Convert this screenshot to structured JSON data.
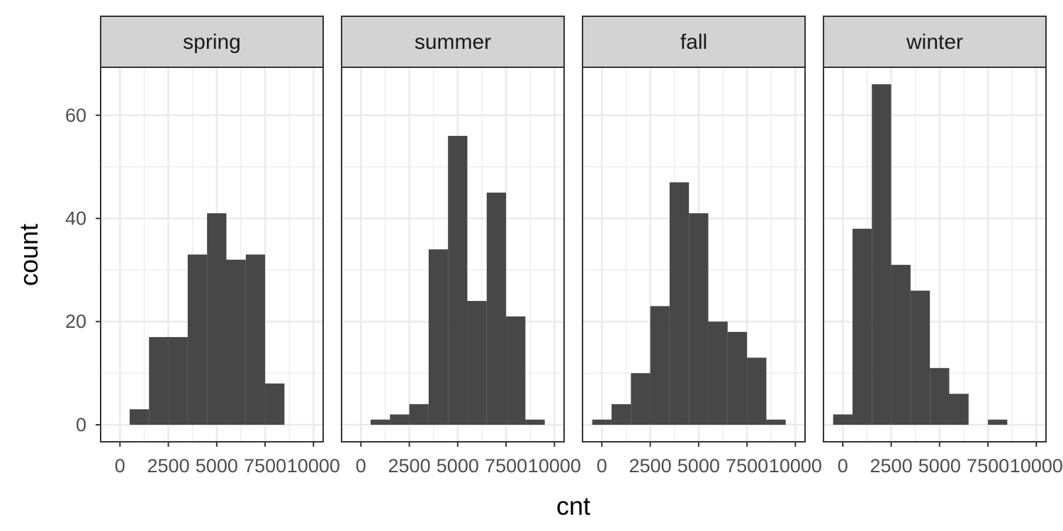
{
  "chart_data": {
    "type": "bar",
    "facet_by": "season",
    "xlabel": "cnt",
    "ylabel": "count",
    "xlim": [
      -1000,
      10500
    ],
    "ylim": [
      -3.3,
      69.3
    ],
    "bin_width": 1000,
    "x_ticks": [
      0,
      2500,
      5000,
      7500,
      10000
    ],
    "x_tick_labels": [
      "0",
      "2500",
      "5000",
      "7500",
      "10000"
    ],
    "y_ticks": [
      0,
      20,
      40,
      60
    ],
    "y_tick_labels": [
      "0",
      "20",
      "40",
      "60"
    ],
    "grid": true,
    "colors": {
      "bar": "#474747",
      "strip": "#d3d3d3",
      "grid": "#ebebeb",
      "border": "#333333"
    },
    "facets": [
      {
        "name": "spring",
        "bin_centers": [
          1000,
          2000,
          3000,
          4000,
          5000,
          6000,
          7000,
          8000
        ],
        "values": [
          3,
          17,
          17,
          33,
          41,
          32,
          33,
          8
        ]
      },
      {
        "name": "summer",
        "bin_centers": [
          1000,
          2000,
          3000,
          4000,
          5000,
          6000,
          7000,
          8000,
          9000
        ],
        "values": [
          1,
          2,
          4,
          34,
          56,
          24,
          45,
          21,
          1
        ]
      },
      {
        "name": "fall",
        "bin_centers": [
          0,
          1000,
          2000,
          3000,
          4000,
          5000,
          6000,
          7000,
          8000,
          9000
        ],
        "values": [
          1,
          4,
          10,
          23,
          47,
          41,
          20,
          18,
          13,
          1
        ]
      },
      {
        "name": "winter",
        "bin_centers": [
          0,
          1000,
          2000,
          3000,
          4000,
          5000,
          6000,
          7000,
          8000
        ],
        "values": [
          2,
          38,
          66,
          31,
          26,
          11,
          6,
          0,
          1
        ]
      }
    ]
  }
}
